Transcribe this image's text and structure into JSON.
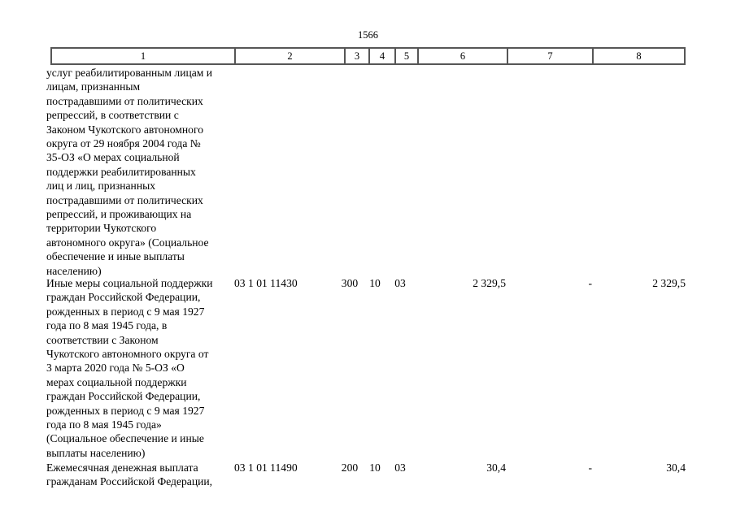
{
  "page_number": "1566",
  "colors": {
    "background": "#ffffff",
    "text": "#000000",
    "table_border": "#565656"
  },
  "table": {
    "headers": [
      "1",
      "2",
      "3",
      "4",
      "5",
      "6",
      "7",
      "8"
    ],
    "rows": [
      {
        "col1": "услуг реабилитированным лицам и\nлицам, признанным\nпострадавшими от политических\nрепрессий, в соответствии с\nЗаконом Чукотского автономного\nокруга от 29 ноября 2004 года №\n35-ОЗ «О мерах социальной\nподдержки реабилитированных\nлиц и лиц, признанных\nпострадавшими от политических\nрепрессий, и проживающих на\nтерритории Чукотского\nавтономного округа» (Социальное\nобеспечение и иные выплаты\nнаселению)",
        "col2": "",
        "col3": "",
        "col4": "",
        "col5": "",
        "col6": "",
        "col7": "",
        "col8": ""
      },
      {
        "col1": "Иные меры социальной поддержки\nграждан Российской Федерации,\nрожденных в период с 9 мая 1927\nгода по 8 мая 1945 года, в\nсоответствии с Законом\nЧукотского автономного округа от\n3 марта 2020 года № 5-ОЗ «О\nмерах социальной поддержки\nграждан Российской Федерации,\nрожденных в период с 9 мая 1927\nгода по 8 мая 1945 года»\n(Социальное обеспечение и иные\nвыплаты населению)",
        "col2": "03 1 01 11430",
        "col3": "300",
        "col4": "10",
        "col5": "03",
        "col6": "2 329,5",
        "col7": "-",
        "col8": "2 329,5"
      },
      {
        "col1": "Ежемесячная денежная выплата\nгражданам Российской Федерации,",
        "col2": "03 1 01 11490",
        "col3": "200",
        "col4": "10",
        "col5": "03",
        "col6": "30,4",
        "col7": "-",
        "col8": "30,4"
      }
    ]
  }
}
